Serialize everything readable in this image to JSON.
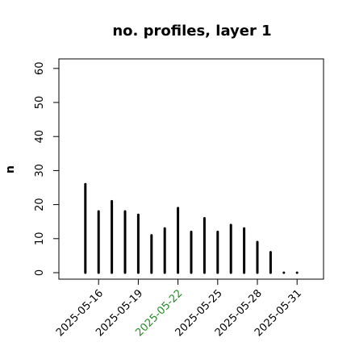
{
  "chart_data": {
    "type": "spike",
    "title": "no. profiles, layer 1",
    "y_label": "n",
    "x": [
      "2025-05-15",
      "2025-05-16",
      "2025-05-17",
      "2025-05-18",
      "2025-05-19",
      "2025-05-20",
      "2025-05-21",
      "2025-05-22",
      "2025-05-23",
      "2025-05-24",
      "2025-05-25",
      "2025-05-26",
      "2025-05-27",
      "2025-05-28",
      "2025-05-29",
      "2025-05-30",
      "2025-05-31"
    ],
    "values": [
      26,
      18,
      21,
      18,
      17,
      11,
      13,
      19,
      12,
      16,
      12,
      14,
      13,
      9,
      6,
      0,
      0
    ],
    "color": "#000000",
    "xlim": [
      "2025-05-13",
      "2025-06-02"
    ],
    "xticks": [
      "2025-05-16",
      "2025-05-19",
      "2025-05-22",
      "2025-05-25",
      "2025-05-28",
      "2025-05-31"
    ],
    "xtick_colors": [
      "#000000",
      "#000000",
      "#228b22",
      "#000000",
      "#000000",
      "#000000"
    ],
    "ylim": [
      -1.9,
      62.8
    ],
    "yticks": [
      0,
      10,
      20,
      30,
      40,
      50,
      60
    ]
  }
}
